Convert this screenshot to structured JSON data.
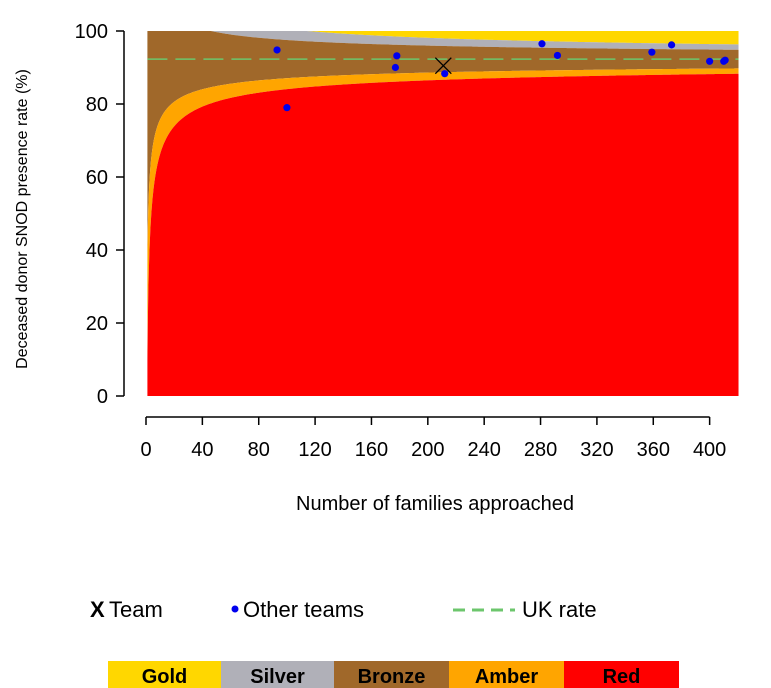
{
  "chart_data": {
    "type": "scatter",
    "title": "",
    "xlabel": "Number of families approached",
    "ylabel": "Deceased donor SNOD presence rate (%)",
    "xlim": [
      0,
      420
    ],
    "ylim": [
      0,
      100
    ],
    "x_ticks": [
      0,
      40,
      80,
      120,
      160,
      200,
      240,
      280,
      320,
      360,
      400
    ],
    "y_ticks": [
      0,
      20,
      40,
      60,
      80,
      100
    ],
    "uk_rate": 92.3,
    "team": {
      "name": "Team",
      "marker": "X",
      "x": 211,
      "y": 90.5
    },
    "other_teams": {
      "name": "Other teams",
      "points": [
        {
          "x": 93,
          "y": 94.8
        },
        {
          "x": 100,
          "y": 79
        },
        {
          "x": 177,
          "y": 90
        },
        {
          "x": 178,
          "y": 93.2
        },
        {
          "x": 212,
          "y": 88.3
        },
        {
          "x": 281,
          "y": 96.5
        },
        {
          "x": 292,
          "y": 93.3
        },
        {
          "x": 359,
          "y": 94.2
        },
        {
          "x": 373,
          "y": 96.2
        },
        {
          "x": 400,
          "y": 91.7
        },
        {
          "x": 410,
          "y": 91.7
        },
        {
          "x": 411,
          "y": 92
        }
      ]
    },
    "legend": {
      "team_label": "Team",
      "team_marker": "X",
      "others_label": "Other teams",
      "uk_label": "UK rate"
    },
    "bands": [
      {
        "name": "Gold",
        "color": "#ffd700"
      },
      {
        "name": "Silver",
        "color": "#b0b0b8"
      },
      {
        "name": "Bronze",
        "color": "#a0682a"
      },
      {
        "name": "Amber",
        "color": "#ffa500"
      },
      {
        "name": "Red",
        "color": "#ff0000"
      }
    ],
    "colors": {
      "uk_line": "#6cc66c",
      "other_points": "#0000ee",
      "team_marker": "#000000"
    },
    "grid": false
  }
}
